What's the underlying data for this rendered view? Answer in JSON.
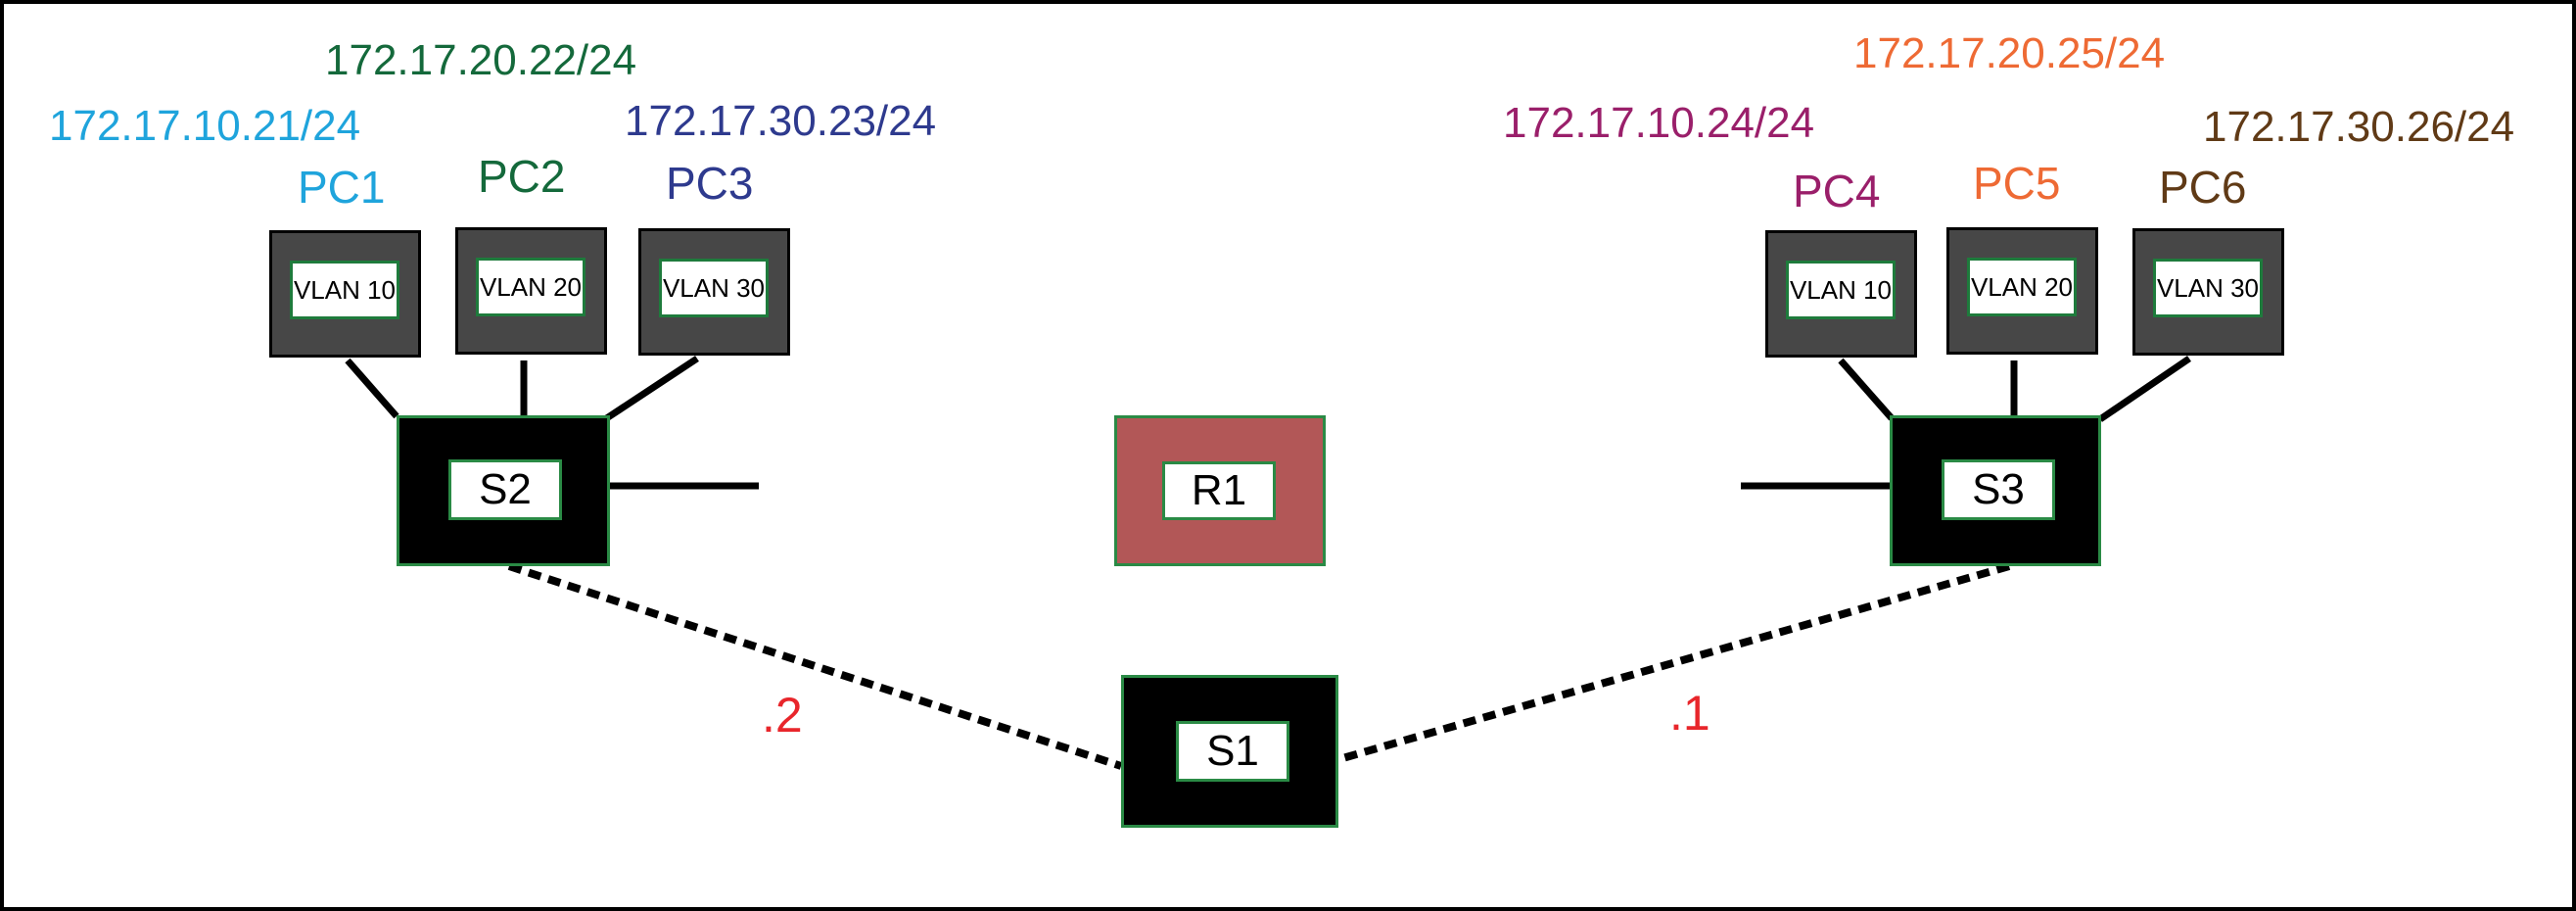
{
  "colors": {
    "pc1": "#1fa4dc",
    "pc2": "#14693b",
    "pc3": "#2e3a8e",
    "pc4": "#9a1f6a",
    "pc5": "#ee6a34",
    "pc6": "#603a16",
    "dots": "#e8262b",
    "switch_fill": "#000000",
    "switch_border": "#2a8a45",
    "router_fill": "#b25757",
    "pc_fill": "#474747"
  },
  "pcs": [
    {
      "name": "PC1",
      "ip": "172.17.10.21/24",
      "vlan": "VLAN 10"
    },
    {
      "name": "PC2",
      "ip": "172.17.20.22/24",
      "vlan": "VLAN 20"
    },
    {
      "name": "PC3",
      "ip": "172.17.30.23/24",
      "vlan": "VLAN 30"
    },
    {
      "name": "PC4",
      "ip": "172.17.10.24/24",
      "vlan": "VLAN 10"
    },
    {
      "name": "PC5",
      "ip": "172.17.20.25/24",
      "vlan": "VLAN 20"
    },
    {
      "name": "PC6",
      "ip": "172.17.30.26/24",
      "vlan": "VLAN 30"
    }
  ],
  "switches": {
    "s1": "S1",
    "s2": "S2",
    "s3": "S3"
  },
  "router": {
    "r1": "R1"
  },
  "links": {
    "s2_s1_label": ".2",
    "s3_s1_label": ".1"
  }
}
